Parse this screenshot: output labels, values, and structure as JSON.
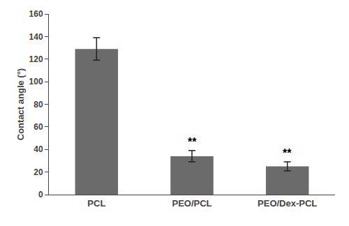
{
  "chart_data": {
    "type": "bar",
    "categories": [
      "PCL",
      "PEO/PCL",
      "PEO/Dex-PCL"
    ],
    "values": [
      129,
      34,
      25
    ],
    "errors": [
      10,
      5,
      4
    ],
    "color": "#6b6b6b",
    "ylabel": "Contact angle (°)",
    "ylim": [
      0,
      160
    ],
    "yticks": [
      0,
      20,
      40,
      60,
      80,
      100,
      120,
      140,
      160
    ],
    "grid": false,
    "annotations": [
      {
        "category": "PEO/PCL",
        "text": "**"
      },
      {
        "category": "PEO/Dex-PCL",
        "text": "**"
      }
    ]
  }
}
